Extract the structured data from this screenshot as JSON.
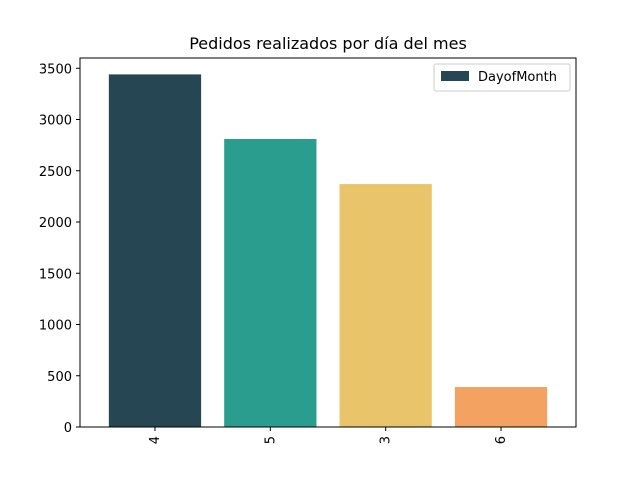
{
  "chart_data": {
    "type": "bar",
    "title": "Pedidos realizados por día del mes",
    "xlabel": "",
    "ylabel": "",
    "categories": [
      "4",
      "5",
      "3",
      "6"
    ],
    "values": [
      3440,
      2810,
      2370,
      390
    ],
    "colors": [
      "#264653",
      "#2a9d8f",
      "#e9c46a",
      "#f4a261"
    ],
    "legend": {
      "label": "DayofMonth",
      "placement": "upper-right"
    },
    "ylim": [
      0,
      3600
    ],
    "yticks": [
      0,
      500,
      1000,
      1500,
      2000,
      2500,
      3000,
      3500
    ],
    "grid": false
  }
}
